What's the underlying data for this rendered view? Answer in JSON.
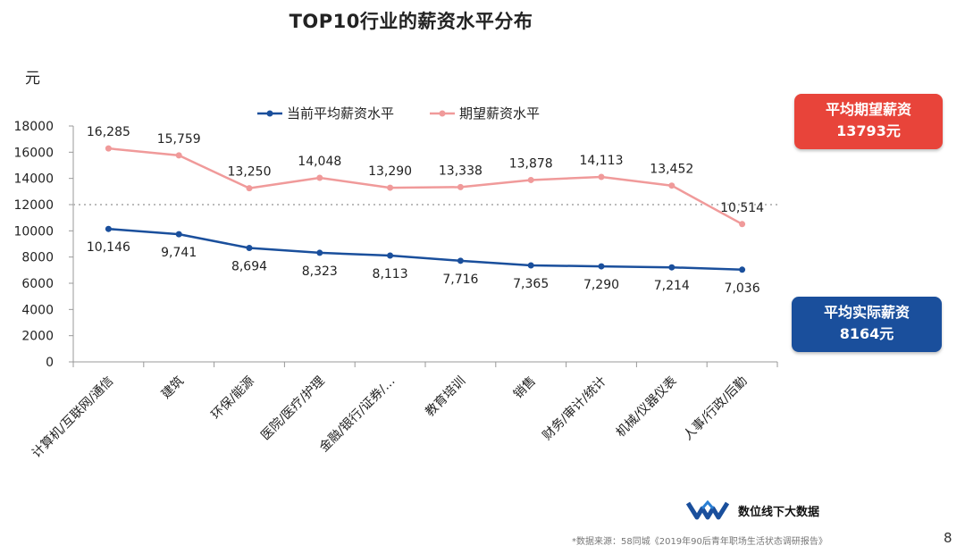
{
  "title": "TOP10行业的薪资水平分布",
  "callouts": {
    "expected": {
      "label": "平均期望薪资",
      "value": "13793元"
    },
    "actual": {
      "label": "平均实际薪资",
      "value": "8164元"
    }
  },
  "brand": "数位线下大数据",
  "source": "*数据来源：58同城《2019年90后青年职场生活状态调研报告》",
  "page_number": "8",
  "colors": {
    "actual": "#1a4f9c",
    "expected": "#f09a9a",
    "reference": "#bbbbbb"
  },
  "chart_data": {
    "type": "line",
    "ylabel": "元",
    "ylim": [
      0,
      18000
    ],
    "yticks": [
      0,
      2000,
      4000,
      6000,
      8000,
      10000,
      12000,
      14000,
      16000,
      18000
    ],
    "categories": [
      "计算机/互联网/通信",
      "建筑",
      "环保/能源",
      "医院/医疗/护理",
      "金融/银行/证券/…",
      "教育培训",
      "销售",
      "财务/审计/统计",
      "机械/仪器仪表",
      "人事/行政/后勤"
    ],
    "series": [
      {
        "name": "当前平均薪资水平",
        "values": [
          10146,
          9741,
          8694,
          8323,
          8113,
          7716,
          7365,
          7290,
          7214,
          7036
        ],
        "labels": [
          "10,146",
          "9,741",
          "8,694",
          "8,323",
          "8,113",
          "7,716",
          "7,365",
          "7,290",
          "7,214",
          "7,036"
        ]
      },
      {
        "name": "期望薪资水平",
        "values": [
          16285,
          15759,
          13250,
          14048,
          13290,
          13338,
          13878,
          14113,
          13452,
          10514
        ],
        "labels": [
          "16,285",
          "15,759",
          "13,250",
          "14,048",
          "13,290",
          "13,338",
          "13,878",
          "14,113",
          "13,452",
          "10,514"
        ]
      }
    ],
    "reference_line": 12000,
    "legend": "top"
  }
}
